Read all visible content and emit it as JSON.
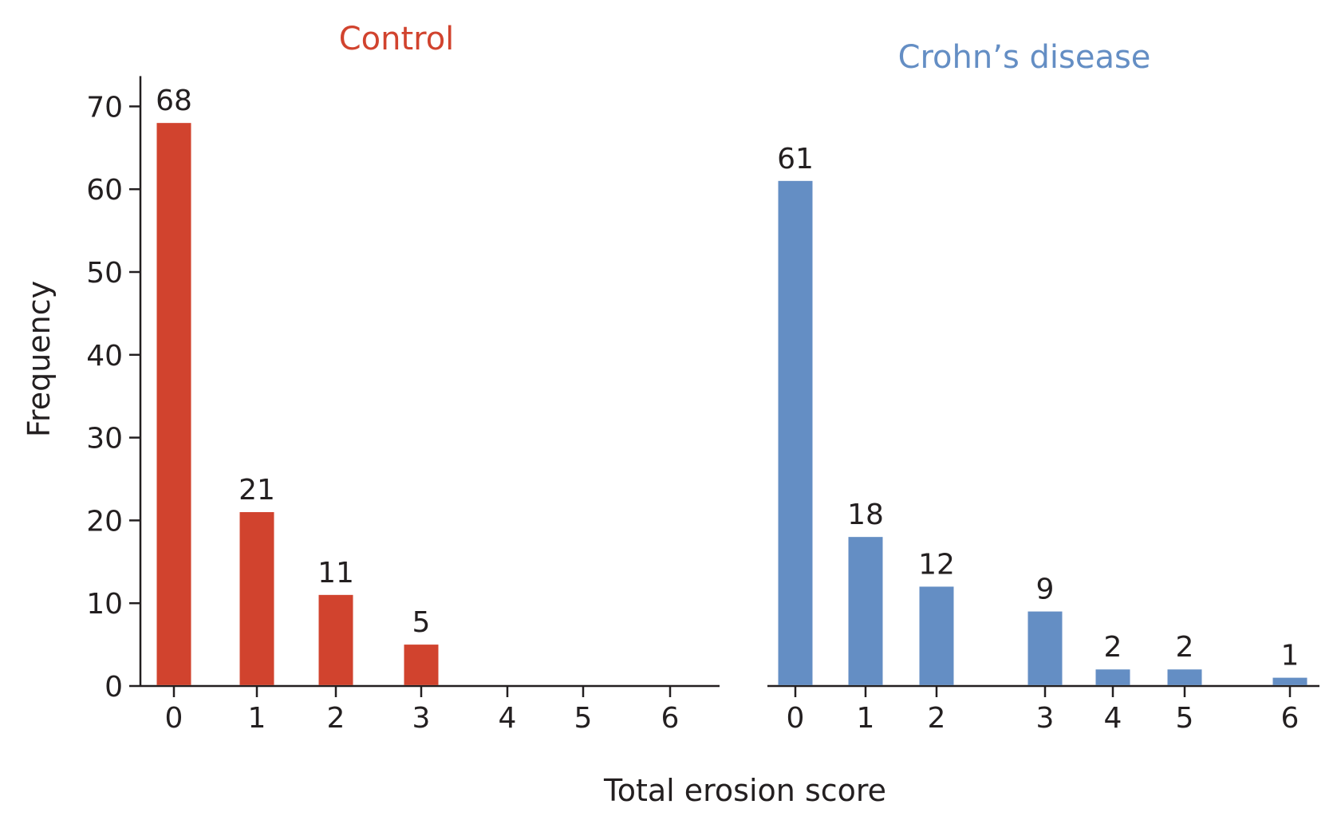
{
  "chart_data": [
    {
      "type": "bar",
      "title": "Control",
      "title_color": "#d1432e",
      "bar_color": "#d1432e",
      "categories": [
        "0",
        "1",
        "2",
        "3",
        "4",
        "5",
        "6"
      ],
      "values": [
        68,
        21,
        11,
        5,
        0,
        0,
        0
      ],
      "data_labels": [
        "68",
        "21",
        "11",
        "5",
        "",
        "",
        ""
      ],
      "ylabel": "Frequency",
      "ylim": [
        0,
        70
      ],
      "yticks": [
        0,
        10,
        20,
        30,
        40,
        50,
        60,
        70
      ],
      "grid": false
    },
    {
      "type": "bar",
      "title": "Crohn’s disease",
      "title_color": "#648ec4",
      "bar_color": "#648ec4",
      "categories": [
        "0",
        "1",
        "2",
        "3",
        "4",
        "5",
        "6"
      ],
      "values": [
        61,
        18,
        12,
        9,
        2,
        2,
        1
      ],
      "data_labels": [
        "61",
        "18",
        "12",
        "9",
        "2",
        "2",
        "1"
      ],
      "ylim": [
        0,
        70
      ],
      "grid": false
    }
  ],
  "shared_xlabel": "Total erosion score"
}
